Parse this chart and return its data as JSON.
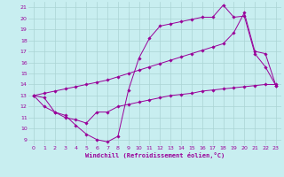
{
  "bg_color": "#c8eef0",
  "line_color": "#990099",
  "grid_color": "#aad4d4",
  "xlabel": "Windchill (Refroidissement éolien,°C)",
  "xlim": [
    -0.5,
    23.5
  ],
  "ylim": [
    8.5,
    21.5
  ],
  "xticks": [
    0,
    1,
    2,
    3,
    4,
    5,
    6,
    7,
    8,
    9,
    10,
    11,
    12,
    13,
    14,
    15,
    16,
    17,
    18,
    19,
    20,
    21,
    22,
    23
  ],
  "yticks": [
    9,
    10,
    11,
    12,
    13,
    14,
    15,
    16,
    17,
    18,
    19,
    20,
    21
  ],
  "line1_x": [
    0,
    1,
    2,
    3,
    4,
    5,
    6,
    7,
    8,
    9,
    10,
    11,
    12,
    13,
    14,
    15,
    16,
    17,
    18,
    19,
    20,
    21,
    22,
    23
  ],
  "line1_y": [
    13.0,
    12.8,
    11.5,
    11.2,
    10.3,
    9.5,
    9.0,
    8.8,
    9.3,
    13.5,
    16.4,
    18.2,
    19.3,
    19.5,
    19.7,
    19.9,
    20.1,
    20.1,
    21.2,
    20.1,
    20.2,
    16.8,
    15.6,
    13.9
  ],
  "line2_x": [
    0,
    1,
    2,
    3,
    4,
    5,
    6,
    7,
    8,
    9,
    10,
    11,
    12,
    13,
    14,
    15,
    16,
    17,
    18,
    19,
    20,
    21,
    22,
    23
  ],
  "line2_y": [
    13.0,
    13.2,
    13.4,
    13.6,
    13.8,
    14.0,
    14.2,
    14.4,
    14.7,
    15.0,
    15.3,
    15.6,
    15.9,
    16.2,
    16.5,
    16.8,
    17.1,
    17.4,
    17.7,
    18.7,
    20.5,
    17.0,
    16.8,
    13.9
  ],
  "line3_x": [
    0,
    1,
    2,
    3,
    4,
    5,
    6,
    7,
    8,
    9,
    10,
    11,
    12,
    13,
    14,
    15,
    16,
    17,
    18,
    19,
    20,
    21,
    22,
    23
  ],
  "line3_y": [
    13.0,
    12.0,
    11.5,
    11.0,
    10.8,
    10.5,
    11.5,
    11.5,
    12.0,
    12.2,
    12.4,
    12.6,
    12.8,
    13.0,
    13.1,
    13.2,
    13.4,
    13.5,
    13.6,
    13.7,
    13.8,
    13.9,
    14.0,
    14.0
  ]
}
